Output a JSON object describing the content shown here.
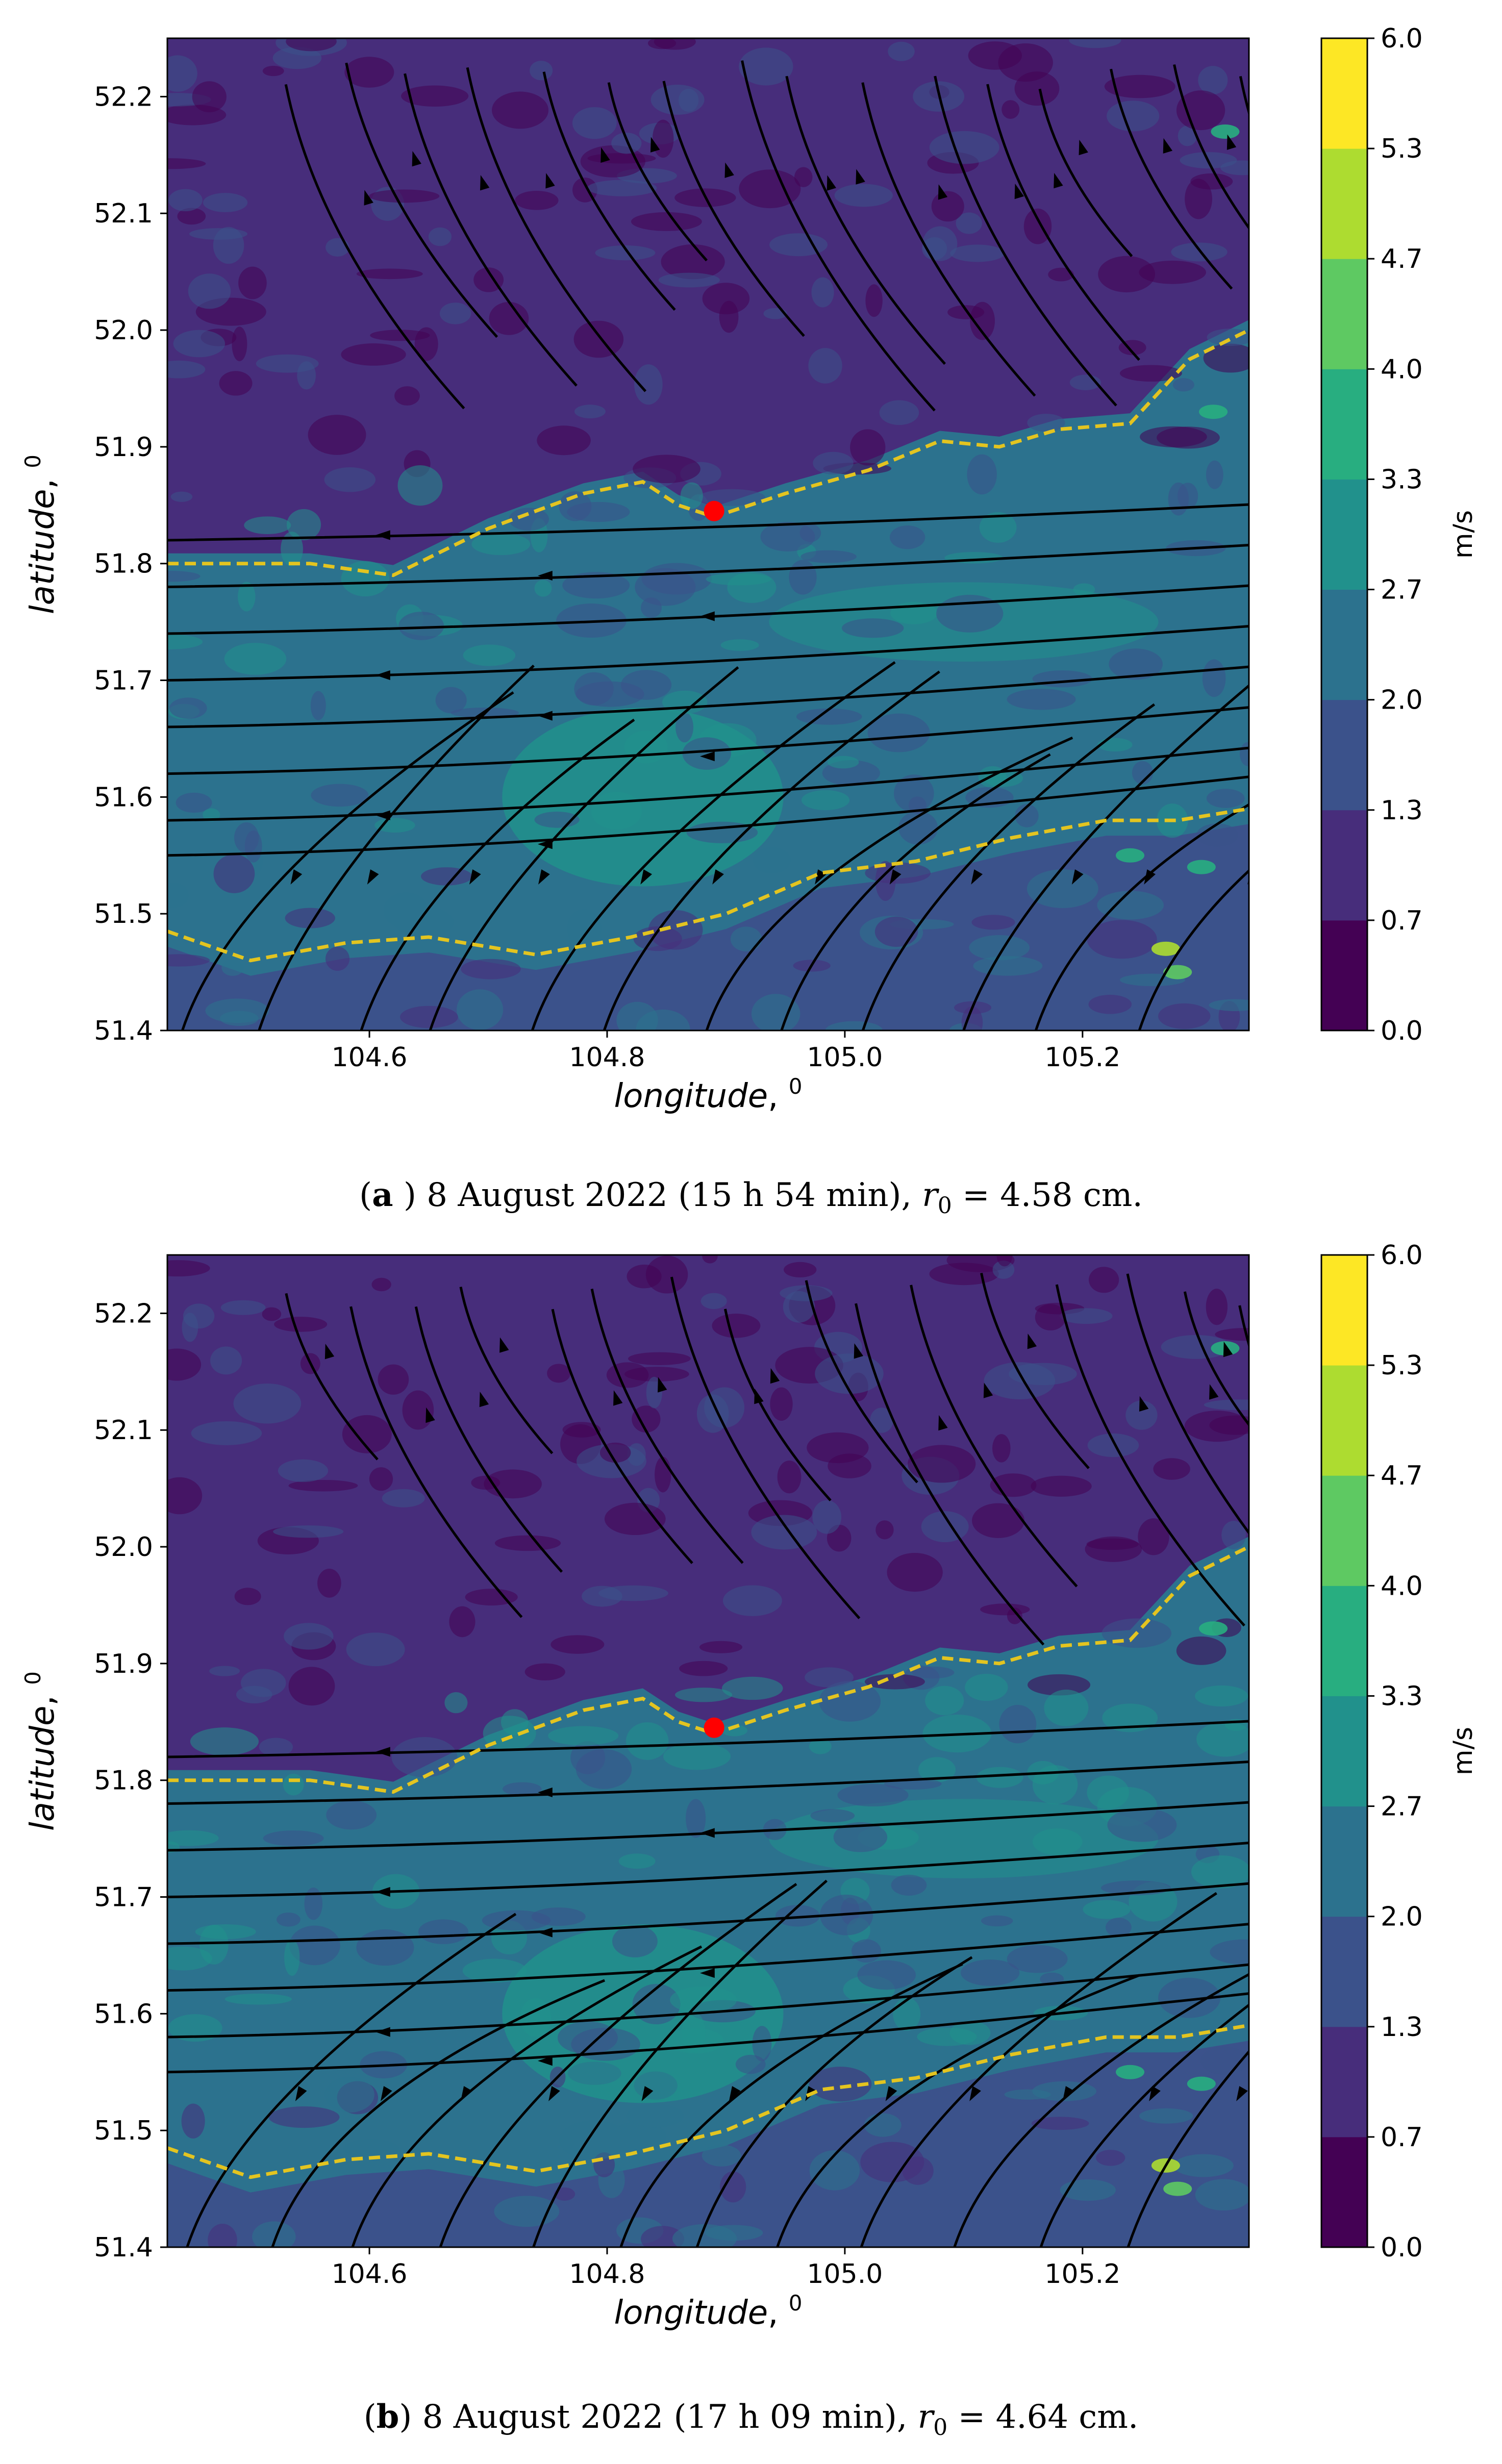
{
  "chart_data": [
    {
      "type": "heatmap",
      "panel": "a",
      "title": "",
      "xlabel": "longitude",
      "ylabel": "latitude",
      "axis_unit_superscript": "0",
      "xlim": [
        104.43,
        105.34
      ],
      "ylim": [
        51.4,
        52.25
      ],
      "xticks": [
        104.6,
        104.8,
        105.0,
        105.2
      ],
      "xtick_labels": [
        "104.6",
        "104.8",
        "105.0",
        "105.2"
      ],
      "yticks": [
        51.4,
        51.5,
        51.6,
        51.7,
        51.8,
        51.9,
        52.0,
        52.1,
        52.2
      ],
      "ytick_labels": [
        "51.4",
        "51.5",
        "51.6",
        "51.7",
        "51.8",
        "51.9",
        "52.0",
        "52.1",
        "52.2"
      ],
      "colorbar": {
        "label": "m/s",
        "levels": [
          0.0,
          0.7,
          1.3,
          2.0,
          2.7,
          3.3,
          4.0,
          4.7,
          5.3,
          6.0
        ],
        "level_labels": [
          "0.0",
          "0.7",
          "1.3",
          "2.0",
          "2.7",
          "3.3",
          "4.0",
          "4.7",
          "5.3",
          "6.0"
        ],
        "colors": [
          "#440154",
          "#472d7b",
          "#3b528b",
          "#2c728e",
          "#21918c",
          "#28ae80",
          "#5ec962",
          "#addc30",
          "#fde725"
        ]
      },
      "point": {
        "lon": 104.89,
        "lat": 51.845,
        "color": "#ff0000"
      },
      "north_shoreline": {
        "color": "#e3c420",
        "lon": [
          104.43,
          104.55,
          104.62,
          104.7,
          104.78,
          104.83,
          104.86,
          104.89,
          104.95,
          105.02,
          105.08,
          105.13,
          105.18,
          105.24,
          105.29,
          105.34
        ],
        "lat": [
          51.8,
          51.8,
          51.79,
          51.83,
          51.86,
          51.87,
          51.85,
          51.84,
          51.86,
          51.88,
          51.905,
          51.9,
          51.915,
          51.92,
          51.975,
          52.0
        ]
      },
      "south_shoreline": {
        "color": "#e3c420",
        "lon": [
          104.43,
          104.5,
          104.58,
          104.65,
          104.74,
          104.82,
          104.9,
          104.98,
          105.06,
          105.14,
          105.22,
          105.28,
          105.34
        ],
        "lat": [
          51.485,
          51.46,
          51.475,
          51.48,
          51.465,
          51.48,
          51.5,
          51.535,
          51.545,
          51.565,
          51.58,
          51.58,
          51.59
        ]
      },
      "caption": {
        "label": "a",
        "text": "8 August 2022 (15 h 54 min),",
        "r_symbol": "r",
        "r_sub": "0",
        "r_value": "= 4.58 cm."
      }
    },
    {
      "type": "heatmap",
      "panel": "b",
      "title": "",
      "xlabel": "longitude",
      "ylabel": "latitude",
      "axis_unit_superscript": "0",
      "xlim": [
        104.43,
        105.34
      ],
      "ylim": [
        51.4,
        52.25
      ],
      "xticks": [
        104.6,
        104.8,
        105.0,
        105.2
      ],
      "xtick_labels": [
        "104.6",
        "104.8",
        "105.0",
        "105.2"
      ],
      "yticks": [
        51.4,
        51.5,
        51.6,
        51.7,
        51.8,
        51.9,
        52.0,
        52.1,
        52.2
      ],
      "ytick_labels": [
        "51.4",
        "51.5",
        "51.6",
        "51.7",
        "51.8",
        "51.9",
        "52.0",
        "52.1",
        "52.2"
      ],
      "colorbar": {
        "label": "m/s",
        "levels": [
          0.0,
          0.7,
          1.3,
          2.0,
          2.7,
          3.3,
          4.0,
          4.7,
          5.3,
          6.0
        ],
        "level_labels": [
          "0.0",
          "0.7",
          "1.3",
          "2.0",
          "2.7",
          "3.3",
          "4.0",
          "4.7",
          "5.3",
          "6.0"
        ],
        "colors": [
          "#440154",
          "#472d7b",
          "#3b528b",
          "#2c728e",
          "#21918c",
          "#28ae80",
          "#5ec962",
          "#addc30",
          "#fde725"
        ]
      },
      "point": {
        "lon": 104.89,
        "lat": 51.845,
        "color": "#ff0000"
      },
      "north_shoreline": {
        "color": "#e3c420",
        "lon": [
          104.43,
          104.55,
          104.62,
          104.7,
          104.78,
          104.83,
          104.86,
          104.89,
          104.95,
          105.02,
          105.08,
          105.13,
          105.18,
          105.24,
          105.29,
          105.34
        ],
        "lat": [
          51.8,
          51.8,
          51.79,
          51.83,
          51.86,
          51.87,
          51.85,
          51.84,
          51.86,
          51.88,
          51.905,
          51.9,
          51.915,
          51.92,
          51.975,
          52.0
        ]
      },
      "south_shoreline": {
        "color": "#e3c420",
        "lon": [
          104.43,
          104.5,
          104.58,
          104.65,
          104.74,
          104.82,
          104.9,
          104.98,
          105.06,
          105.14,
          105.22,
          105.28,
          105.34
        ],
        "lat": [
          51.485,
          51.46,
          51.475,
          51.48,
          51.465,
          51.48,
          51.5,
          51.535,
          51.545,
          51.565,
          51.58,
          51.58,
          51.59
        ]
      },
      "caption": {
        "label": "b",
        "text": "8 August 2022 (17 h 09 min),",
        "r_symbol": "r",
        "r_sub": "0",
        "r_value": "= 4.64 cm."
      }
    }
  ]
}
